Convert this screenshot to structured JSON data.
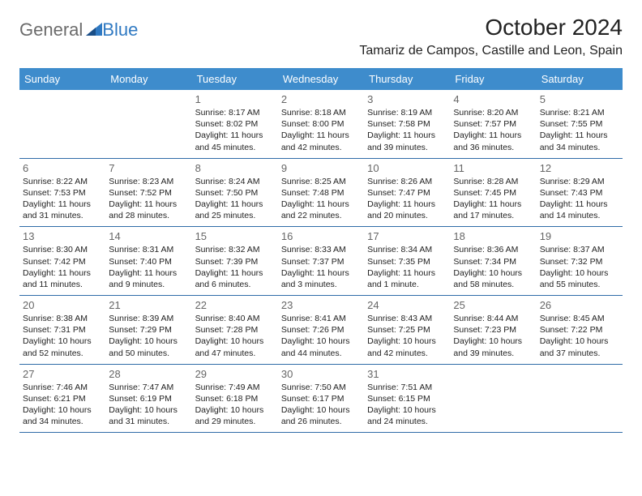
{
  "logo": {
    "word1": "General",
    "word2": "Blue"
  },
  "title": "October 2024",
  "subtitle": "Tamariz de Campos, Castille and Leon, Spain",
  "colors": {
    "header_bg": "#3e8ccc",
    "header_text": "#ffffff",
    "week_border": "#2f6ca8",
    "body_text": "#222222",
    "daynum": "#666666",
    "logo_gray": "#6b6b6b",
    "logo_blue": "#2f79c2",
    "page_bg": "#ffffff"
  },
  "day_labels": [
    "Sunday",
    "Monday",
    "Tuesday",
    "Wednesday",
    "Thursday",
    "Friday",
    "Saturday"
  ],
  "weeks": [
    [
      null,
      null,
      {
        "n": "1",
        "sr": "8:17 AM",
        "ss": "8:02 PM",
        "dl": "11 hours and 45 minutes."
      },
      {
        "n": "2",
        "sr": "8:18 AM",
        "ss": "8:00 PM",
        "dl": "11 hours and 42 minutes."
      },
      {
        "n": "3",
        "sr": "8:19 AM",
        "ss": "7:58 PM",
        "dl": "11 hours and 39 minutes."
      },
      {
        "n": "4",
        "sr": "8:20 AM",
        "ss": "7:57 PM",
        "dl": "11 hours and 36 minutes."
      },
      {
        "n": "5",
        "sr": "8:21 AM",
        "ss": "7:55 PM",
        "dl": "11 hours and 34 minutes."
      }
    ],
    [
      {
        "n": "6",
        "sr": "8:22 AM",
        "ss": "7:53 PM",
        "dl": "11 hours and 31 minutes."
      },
      {
        "n": "7",
        "sr": "8:23 AM",
        "ss": "7:52 PM",
        "dl": "11 hours and 28 minutes."
      },
      {
        "n": "8",
        "sr": "8:24 AM",
        "ss": "7:50 PM",
        "dl": "11 hours and 25 minutes."
      },
      {
        "n": "9",
        "sr": "8:25 AM",
        "ss": "7:48 PM",
        "dl": "11 hours and 22 minutes."
      },
      {
        "n": "10",
        "sr": "8:26 AM",
        "ss": "7:47 PM",
        "dl": "11 hours and 20 minutes."
      },
      {
        "n": "11",
        "sr": "8:28 AM",
        "ss": "7:45 PM",
        "dl": "11 hours and 17 minutes."
      },
      {
        "n": "12",
        "sr": "8:29 AM",
        "ss": "7:43 PM",
        "dl": "11 hours and 14 minutes."
      }
    ],
    [
      {
        "n": "13",
        "sr": "8:30 AM",
        "ss": "7:42 PM",
        "dl": "11 hours and 11 minutes."
      },
      {
        "n": "14",
        "sr": "8:31 AM",
        "ss": "7:40 PM",
        "dl": "11 hours and 9 minutes."
      },
      {
        "n": "15",
        "sr": "8:32 AM",
        "ss": "7:39 PM",
        "dl": "11 hours and 6 minutes."
      },
      {
        "n": "16",
        "sr": "8:33 AM",
        "ss": "7:37 PM",
        "dl": "11 hours and 3 minutes."
      },
      {
        "n": "17",
        "sr": "8:34 AM",
        "ss": "7:35 PM",
        "dl": "11 hours and 1 minute."
      },
      {
        "n": "18",
        "sr": "8:36 AM",
        "ss": "7:34 PM",
        "dl": "10 hours and 58 minutes."
      },
      {
        "n": "19",
        "sr": "8:37 AM",
        "ss": "7:32 PM",
        "dl": "10 hours and 55 minutes."
      }
    ],
    [
      {
        "n": "20",
        "sr": "8:38 AM",
        "ss": "7:31 PM",
        "dl": "10 hours and 52 minutes."
      },
      {
        "n": "21",
        "sr": "8:39 AM",
        "ss": "7:29 PM",
        "dl": "10 hours and 50 minutes."
      },
      {
        "n": "22",
        "sr": "8:40 AM",
        "ss": "7:28 PM",
        "dl": "10 hours and 47 minutes."
      },
      {
        "n": "23",
        "sr": "8:41 AM",
        "ss": "7:26 PM",
        "dl": "10 hours and 44 minutes."
      },
      {
        "n": "24",
        "sr": "8:43 AM",
        "ss": "7:25 PM",
        "dl": "10 hours and 42 minutes."
      },
      {
        "n": "25",
        "sr": "8:44 AM",
        "ss": "7:23 PM",
        "dl": "10 hours and 39 minutes."
      },
      {
        "n": "26",
        "sr": "8:45 AM",
        "ss": "7:22 PM",
        "dl": "10 hours and 37 minutes."
      }
    ],
    [
      {
        "n": "27",
        "sr": "7:46 AM",
        "ss": "6:21 PM",
        "dl": "10 hours and 34 minutes."
      },
      {
        "n": "28",
        "sr": "7:47 AM",
        "ss": "6:19 PM",
        "dl": "10 hours and 31 minutes."
      },
      {
        "n": "29",
        "sr": "7:49 AM",
        "ss": "6:18 PM",
        "dl": "10 hours and 29 minutes."
      },
      {
        "n": "30",
        "sr": "7:50 AM",
        "ss": "6:17 PM",
        "dl": "10 hours and 26 minutes."
      },
      {
        "n": "31",
        "sr": "7:51 AM",
        "ss": "6:15 PM",
        "dl": "10 hours and 24 minutes."
      },
      null,
      null
    ]
  ],
  "labels": {
    "sunrise": "Sunrise: ",
    "sunset": "Sunset: ",
    "daylight": "Daylight: "
  }
}
